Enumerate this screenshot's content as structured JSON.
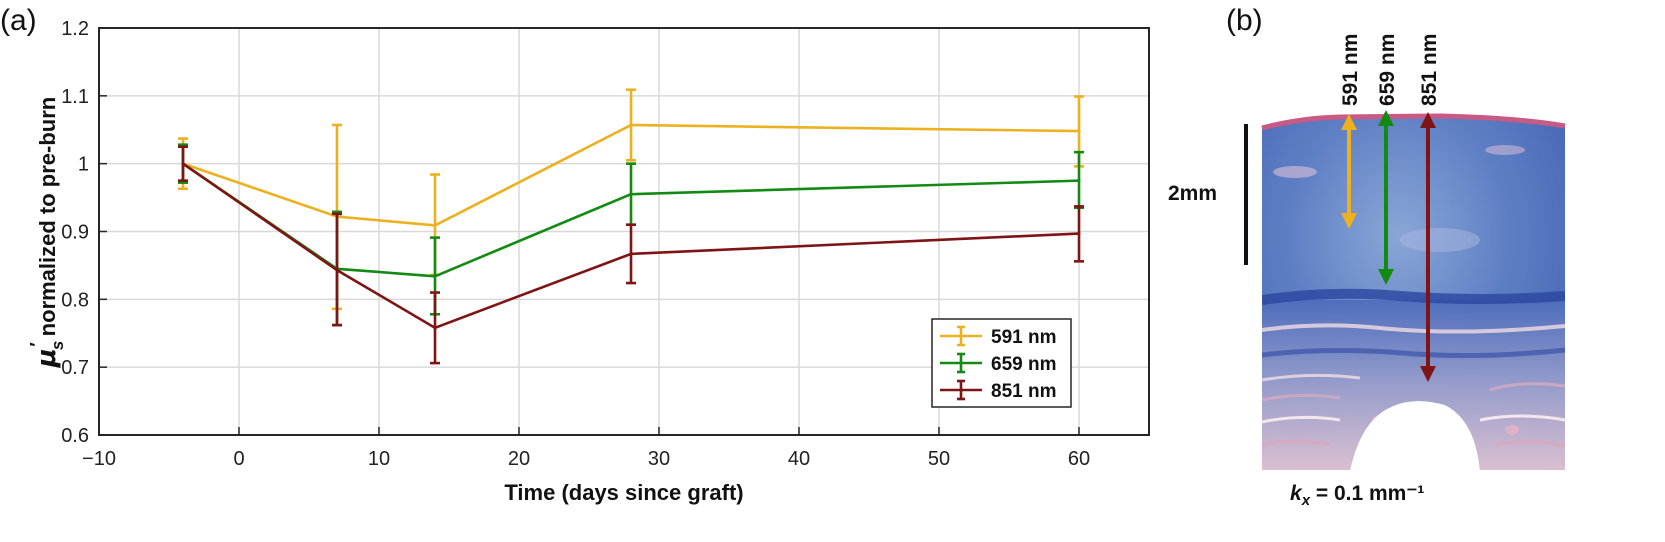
{
  "panels": {
    "a_label": "(a)",
    "b_label": "(b)"
  },
  "chart_data": {
    "type": "line",
    "title": "",
    "xlabel": "Time (days since graft)",
    "ylabel": {
      "symbol": "μ",
      "prime": "′",
      "subscript": "s",
      "text": "normalized to pre-burn"
    },
    "xlim": [
      -10,
      65
    ],
    "ylim": [
      0.6,
      1.2
    ],
    "xticks": [
      -10,
      0,
      10,
      20,
      30,
      40,
      50,
      60
    ],
    "xtick_labels": [
      "−10",
      "0",
      "10",
      "20",
      "30",
      "40",
      "50",
      "60"
    ],
    "yticks": [
      0.6,
      0.7,
      0.8,
      0.9,
      1.0,
      1.1,
      1.2
    ],
    "ytick_labels": [
      "0.6",
      "0.7",
      "0.8",
      "0.9",
      "1",
      "1.1",
      "1.2"
    ],
    "grid": true,
    "legend_position": "bottom-right",
    "x": [
      -4,
      7,
      14,
      28,
      60
    ],
    "series": [
      {
        "name": "591 nm",
        "color": "#EDB120",
        "values": [
          1.0,
          0.922,
          0.909,
          1.057,
          1.048
        ],
        "err_low": [
          0.963,
          0.786,
          0.836,
          1.005,
          0.996
        ],
        "err_high": [
          1.037,
          1.057,
          0.984,
          1.109,
          1.099
        ]
      },
      {
        "name": "659 nm",
        "color": "#138A13",
        "values": [
          1.0,
          0.845,
          0.834,
          0.955,
          0.975
        ],
        "err_low": [
          0.972,
          0.762,
          0.778,
          0.91,
          0.935
        ],
        "err_high": [
          1.028,
          0.929,
          0.891,
          1.0,
          1.017
        ]
      },
      {
        "name": "851 nm",
        "color": "#7F1414",
        "values": [
          1.0,
          0.843,
          0.758,
          0.867,
          0.897
        ],
        "err_low": [
          0.975,
          0.762,
          0.706,
          0.824,
          0.856
        ],
        "err_high": [
          1.025,
          0.926,
          0.81,
          0.91,
          0.937
        ]
      }
    ]
  },
  "histology": {
    "wavelength_labels": [
      "591 nm",
      "659 nm",
      "851 nm"
    ],
    "colors": {
      "c591": "#EDB120",
      "c659": "#138A13",
      "c851": "#7F1414"
    },
    "scale_label": "2mm",
    "kx_label": {
      "symbol": "k",
      "subscript": "x",
      "text": " = 0.1 mm⁻¹"
    }
  }
}
